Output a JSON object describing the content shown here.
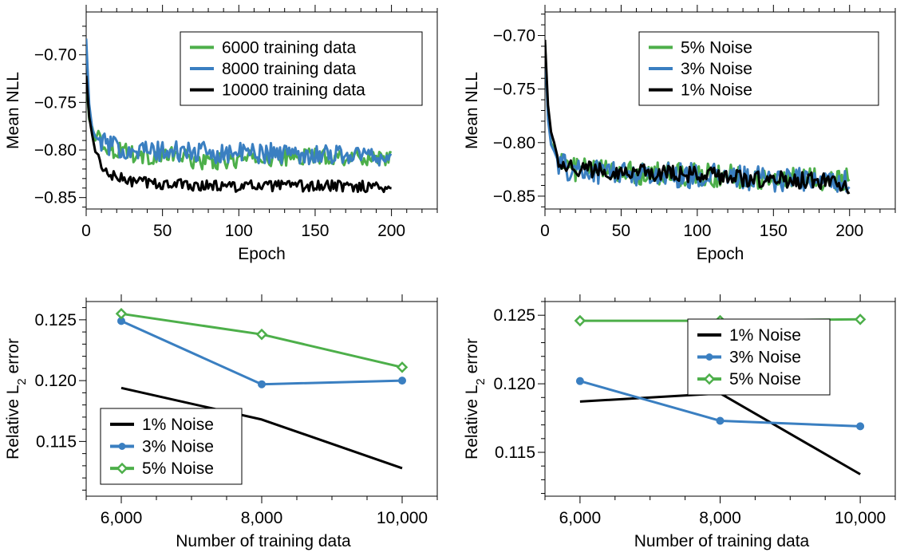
{
  "colors": {
    "green": "#4daf4a",
    "blue": "#3a7fc1",
    "black": "#000000"
  },
  "chart_data": [
    {
      "type": "line",
      "xlabel": "Epoch",
      "ylabel": "Mean NLL",
      "xlim": [
        0,
        230
      ],
      "ylim": [
        -0.862,
        -0.655
      ],
      "xticks": [
        0,
        50,
        100,
        150,
        200
      ],
      "xtick_labels": [
        "0",
        "50",
        "100",
        "150",
        "200"
      ],
      "yticks": [
        -0.7,
        -0.75,
        -0.8,
        -0.85
      ],
      "ytick_labels": [
        "-0.70",
        "-0.75",
        "-0.80",
        "-0.85"
      ],
      "legend_position": "top-right",
      "series": [
        {
          "name": "6000 training data",
          "color": "#4daf4a",
          "points": [
            [
              0,
              -0.726
            ],
            [
              2,
              -0.768
            ],
            [
              4,
              -0.776
            ],
            [
              6,
              -0.79
            ],
            [
              8,
              -0.78
            ],
            [
              10,
              -0.792
            ],
            [
              15,
              -0.797
            ],
            [
              20,
              -0.801
            ],
            [
              25,
              -0.797
            ],
            [
              30,
              -0.804
            ],
            [
              40,
              -0.807
            ],
            [
              50,
              -0.806
            ],
            [
              60,
              -0.806
            ],
            [
              70,
              -0.811
            ],
            [
              80,
              -0.812
            ],
            [
              90,
              -0.812
            ],
            [
              100,
              -0.81
            ],
            [
              110,
              -0.809
            ],
            [
              120,
              -0.808
            ],
            [
              130,
              -0.808
            ],
            [
              140,
              -0.807
            ],
            [
              150,
              -0.806
            ],
            [
              160,
              -0.807
            ],
            [
              170,
              -0.807
            ],
            [
              180,
              -0.808
            ],
            [
              190,
              -0.807
            ],
            [
              200,
              -0.807
            ]
          ],
          "noise": 0.009
        },
        {
          "name": "8000 training data",
          "color": "#3a7fc1",
          "points": [
            [
              0,
              -0.683
            ],
            [
              2,
              -0.752
            ],
            [
              4,
              -0.778
            ],
            [
              6,
              -0.786
            ],
            [
              8,
              -0.789
            ],
            [
              10,
              -0.791
            ],
            [
              15,
              -0.795
            ],
            [
              20,
              -0.798
            ],
            [
              30,
              -0.799
            ],
            [
              40,
              -0.801
            ],
            [
              50,
              -0.802
            ],
            [
              60,
              -0.802
            ],
            [
              70,
              -0.802
            ],
            [
              80,
              -0.803
            ],
            [
              90,
              -0.803
            ],
            [
              100,
              -0.803
            ],
            [
              120,
              -0.803
            ],
            [
              140,
              -0.804
            ],
            [
              160,
              -0.804
            ],
            [
              180,
              -0.805
            ],
            [
              200,
              -0.807
            ]
          ],
          "noise": 0.011
        },
        {
          "name": "10000 training data",
          "color": "#000000",
          "points": [
            [
              0,
              -0.722
            ],
            [
              2,
              -0.765
            ],
            [
              4,
              -0.785
            ],
            [
              6,
              -0.802
            ],
            [
              8,
              -0.805
            ],
            [
              10,
              -0.82
            ],
            [
              15,
              -0.826
            ],
            [
              20,
              -0.829
            ],
            [
              30,
              -0.833
            ],
            [
              40,
              -0.834
            ],
            [
              50,
              -0.836
            ],
            [
              60,
              -0.836
            ],
            [
              70,
              -0.837
            ],
            [
              80,
              -0.837
            ],
            [
              90,
              -0.838
            ],
            [
              100,
              -0.838
            ],
            [
              120,
              -0.838
            ],
            [
              140,
              -0.838
            ],
            [
              160,
              -0.838
            ],
            [
              180,
              -0.838
            ],
            [
              200,
              -0.839
            ]
          ],
          "noise": 0.006
        }
      ]
    },
    {
      "type": "line",
      "xlabel": "Epoch",
      "ylabel": "Mean NLL",
      "xlim": [
        0,
        230
      ],
      "ylim": [
        -0.862,
        -0.678
      ],
      "xticks": [
        0,
        50,
        100,
        150,
        200
      ],
      "xtick_labels": [
        "0",
        "50",
        "100",
        "150",
        "200"
      ],
      "yticks": [
        -0.7,
        -0.75,
        -0.8,
        -0.85
      ],
      "ytick_labels": [
        "-0.70",
        "-0.75",
        "-0.80",
        "-0.85"
      ],
      "legend_position": "top-right",
      "series": [
        {
          "name": "5% Noise",
          "color": "#4daf4a",
          "points": [
            [
              0,
              -0.707
            ],
            [
              2,
              -0.775
            ],
            [
              4,
              -0.8
            ],
            [
              6,
              -0.806
            ],
            [
              8,
              -0.812
            ],
            [
              10,
              -0.818
            ],
            [
              15,
              -0.823
            ],
            [
              20,
              -0.825
            ],
            [
              40,
              -0.826
            ],
            [
              60,
              -0.828
            ],
            [
              80,
              -0.829
            ],
            [
              100,
              -0.83
            ],
            [
              120,
              -0.831
            ],
            [
              140,
              -0.833
            ],
            [
              160,
              -0.834
            ],
            [
              180,
              -0.834
            ],
            [
              200,
              -0.833
            ]
          ],
          "noise": 0.011
        },
        {
          "name": "3% Noise",
          "color": "#3a7fc1",
          "points": [
            [
              0,
              -0.708
            ],
            [
              2,
              -0.778
            ],
            [
              4,
              -0.802
            ],
            [
              6,
              -0.808
            ],
            [
              8,
              -0.815
            ],
            [
              10,
              -0.82
            ],
            [
              15,
              -0.825
            ],
            [
              20,
              -0.826
            ],
            [
              40,
              -0.827
            ],
            [
              60,
              -0.829
            ],
            [
              80,
              -0.83
            ],
            [
              100,
              -0.831
            ],
            [
              120,
              -0.832
            ],
            [
              140,
              -0.834
            ],
            [
              160,
              -0.835
            ],
            [
              180,
              -0.835
            ],
            [
              200,
              -0.836
            ]
          ],
          "noise": 0.012
        },
        {
          "name": "1% Noise",
          "color": "#000000",
          "points": [
            [
              0,
              -0.704
            ],
            [
              2,
              -0.765
            ],
            [
              4,
              -0.79
            ],
            [
              6,
              -0.8
            ],
            [
              8,
              -0.812
            ],
            [
              10,
              -0.818
            ],
            [
              15,
              -0.822
            ],
            [
              20,
              -0.824
            ],
            [
              40,
              -0.826
            ],
            [
              60,
              -0.828
            ],
            [
              80,
              -0.829
            ],
            [
              100,
              -0.83
            ],
            [
              120,
              -0.832
            ],
            [
              140,
              -0.834
            ],
            [
              160,
              -0.835
            ],
            [
              180,
              -0.836
            ],
            [
              200,
              -0.84
            ]
          ],
          "noise": 0.008
        }
      ]
    },
    {
      "type": "line",
      "xlabel": "Number of training data",
      "ylabel_main": "Relative L",
      "ylabel_sub": "2",
      "ylabel_tail": " error",
      "xlim": [
        5500,
        10500
      ],
      "ylim": [
        0.1105,
        0.1265
      ],
      "xticks": [
        6000,
        8000,
        10000
      ],
      "xtick_labels": [
        "6,000",
        "8,000",
        "10,000"
      ],
      "yticks": [
        0.115,
        0.12,
        0.125
      ],
      "ytick_labels": [
        "0.115",
        "0.120",
        "0.125"
      ],
      "legend_position": "bottom-left",
      "series": [
        {
          "name": "1% Noise",
          "color": "#000000",
          "marker": "none",
          "x": [
            6000,
            8000,
            10000
          ],
          "y": [
            0.1194,
            0.1168,
            0.1128
          ]
        },
        {
          "name": "3% Noise",
          "color": "#3a7fc1",
          "marker": "circle",
          "x": [
            6000,
            8000,
            10000
          ],
          "y": [
            0.1249,
            0.1197,
            0.12
          ]
        },
        {
          "name": "5% Noise",
          "color": "#4daf4a",
          "marker": "diamond",
          "x": [
            6000,
            8000,
            10000
          ],
          "y": [
            0.1255,
            0.1238,
            0.1211
          ]
        }
      ]
    },
    {
      "type": "line",
      "xlabel": "Number of training data",
      "ylabel_main": "Relative L",
      "ylabel_sub": "2",
      "ylabel_tail": " error",
      "xlim": [
        5500,
        10500
      ],
      "ylim": [
        0.1118,
        0.126
      ],
      "xticks": [
        6000,
        8000,
        10000
      ],
      "xtick_labels": [
        "6,000",
        "8,000",
        "10,000"
      ],
      "yticks": [
        0.115,
        0.12,
        0.125
      ],
      "ytick_labels": [
        "0.115",
        "0.120",
        "0.125"
      ],
      "legend_position": "top-right",
      "series": [
        {
          "name": "1% Noise",
          "color": "#000000",
          "marker": "none",
          "x": [
            6000,
            8000,
            10000
          ],
          "y": [
            0.1187,
            0.1193,
            0.1134
          ]
        },
        {
          "name": "3% Noise",
          "color": "#3a7fc1",
          "marker": "circle",
          "x": [
            6000,
            8000,
            10000
          ],
          "y": [
            0.1202,
            0.1173,
            0.1169
          ]
        },
        {
          "name": "5% Noise",
          "color": "#4daf4a",
          "marker": "diamond",
          "x": [
            6000,
            8000,
            10000
          ],
          "y": [
            0.1246,
            0.1246,
            0.1247
          ]
        }
      ]
    }
  ]
}
